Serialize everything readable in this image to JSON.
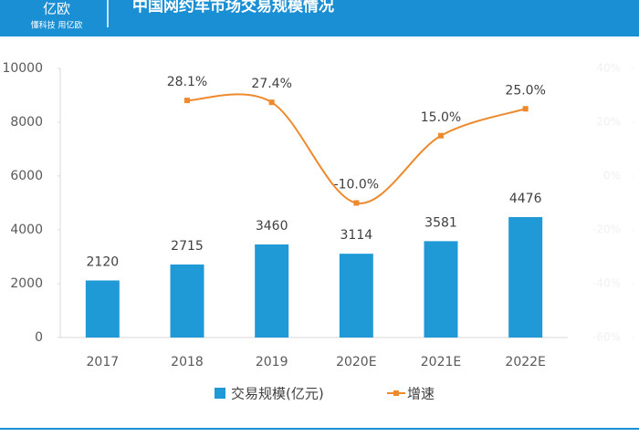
{
  "header": {
    "logo": "亿欧",
    "slogan": "懂科技 用亿欧"
  },
  "chart_data": {
    "type": "bar",
    "title": "中国网约车市场交易规模情况",
    "categories": [
      "2017",
      "2018",
      "2019",
      "2020E",
      "2021E",
      "2022E"
    ],
    "series": [
      {
        "name": "交易规模(亿元)",
        "type": "bar",
        "color": "#1f9ad6",
        "values": [
          2120,
          2715,
          3460,
          3114,
          3581,
          4476
        ]
      },
      {
        "name": "增速",
        "type": "line",
        "axis": "y2",
        "color": "#ee8a2c",
        "values": [
          null,
          28.1,
          27.4,
          -10.0,
          15.0,
          25.0
        ],
        "value_labels": [
          null,
          "28.1%",
          "27.4%",
          "-10.0%",
          "15.0%",
          "25.0%"
        ]
      }
    ],
    "ylim": [
      0,
      10000
    ],
    "yticks": [
      0,
      2000,
      4000,
      6000,
      8000,
      10000
    ],
    "y2lim": [
      -60,
      40
    ],
    "y2ticks": [
      {
        "value": -60,
        "label": "-60%"
      },
      {
        "value": -40,
        "label": "-40%"
      },
      {
        "value": -20,
        "label": "-20%"
      },
      {
        "value": 0,
        "label": "0%"
      },
      {
        "value": 20,
        "label": "20%"
      },
      {
        "value": 40,
        "label": "40%"
      }
    ],
    "legend": "bottom"
  }
}
